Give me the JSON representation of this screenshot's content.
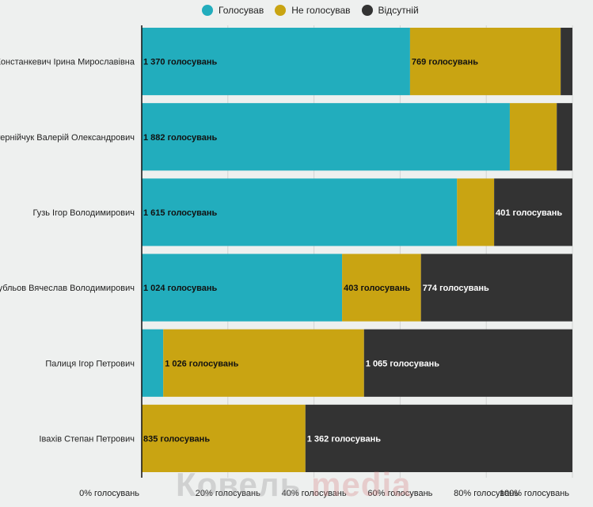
{
  "legend": [
    {
      "label": "Голосував",
      "color": "#22adbd"
    },
    {
      "label": "Не голосував",
      "color": "#c9a412"
    },
    {
      "label": "Відсутній",
      "color": "#333333"
    }
  ],
  "watermark": {
    "part1": "Ковель ",
    "part2": "media"
  },
  "chart_data": {
    "type": "bar",
    "orientation": "horizontal",
    "stacked": "percent",
    "categories": [
      "Констанкевич Ірина Мирославівна",
      "Стернійчук Валерій Олександрович",
      "Гузь Ігор Володимирович",
      "Рубльов Вячеслав Володимирович",
      "Палиця Ігор Петрович",
      "Івахів Степан Петрович"
    ],
    "series": [
      {
        "name": "Голосував",
        "color": "#22adbd",
        "values": [
          1370,
          1882,
          1615,
          1024,
          110,
          0
        ]
      },
      {
        "name": "Не голосував",
        "color": "#c9a412",
        "values": [
          769,
          240,
          190,
          403,
          1026,
          835
        ]
      },
      {
        "name": "Відсутній",
        "color": "#333333",
        "values": [
          60,
          80,
          401,
          774,
          1065,
          1362
        ]
      }
    ],
    "data_labels": [
      [
        "1 370 голосувань",
        "769 голосувань",
        ""
      ],
      [
        "1 882 голосувань",
        "",
        ""
      ],
      [
        "1 615 голосувань",
        "",
        "401 голосувань"
      ],
      [
        "1 024 голосувань",
        "403 голосувань",
        "774 голосувань"
      ],
      [
        "",
        "1 026 голосувань",
        "1 065 голосувань"
      ],
      [
        "",
        "835 голосувань",
        "1 362 голосувань"
      ]
    ],
    "xlim": [
      0,
      100
    ],
    "x_ticks": [
      0,
      20,
      40,
      60,
      80,
      100
    ],
    "x_tick_labels": [
      "0% голосувань",
      "20% голосувань",
      "40% голосувань",
      "60% голосувань",
      "80% голосувань",
      "100% голосувань"
    ],
    "grid": true,
    "legend_position": "top"
  }
}
